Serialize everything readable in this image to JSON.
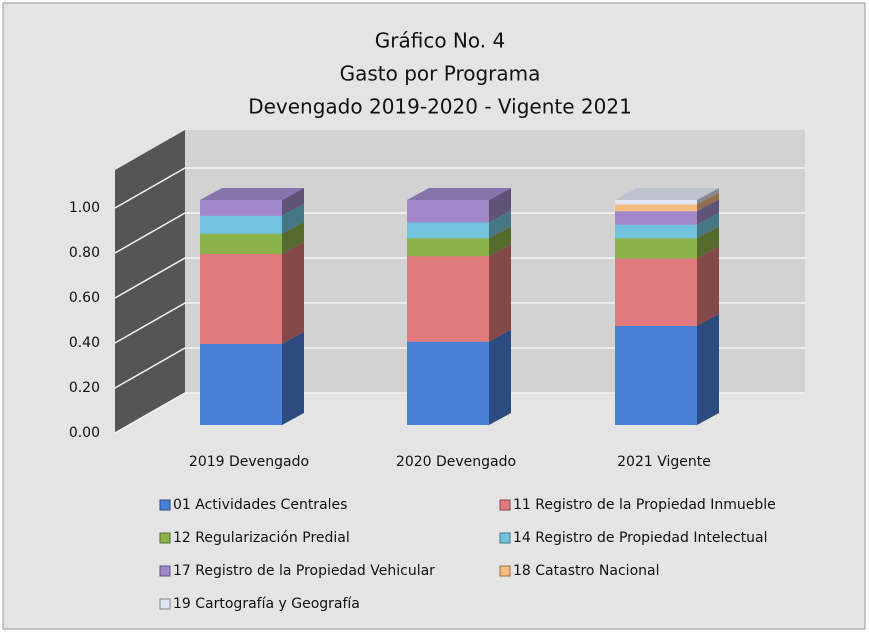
{
  "chart_data": {
    "type": "bar3d_stacked",
    "title": [
      "Gráfico No. 4",
      "Gasto por Programa",
      "Devengado 2019-2020 - Vigente 2021"
    ],
    "categories": [
      "2019 Devengado",
      "2020 Devengado",
      "2021 Vigente"
    ],
    "ylim": [
      0,
      1
    ],
    "yticks": [
      {
        "value": 0,
        "label": "0.00"
      },
      {
        "value": 0.2,
        "label": "0.20"
      },
      {
        "value": 0.4,
        "label": "0.40"
      },
      {
        "value": 0.6,
        "label": "0.60"
      },
      {
        "value": 0.8,
        "label": "0.80"
      },
      {
        "value": 1,
        "label": "1.00"
      }
    ],
    "grid": true,
    "series": [
      {
        "name": "01 Actividades Centrales",
        "color": "#4a7fd6",
        "values": [
          0.36,
          0.37,
          0.44
        ]
      },
      {
        "name": "11 Registro de la Propiedad Inmueble",
        "color": "#e07a7c",
        "values": [
          0.4,
          0.38,
          0.3
        ]
      },
      {
        "name": "12 Regularización Predial",
        "color": "#8cb24c",
        "values": [
          0.09,
          0.08,
          0.09
        ]
      },
      {
        "name": "14 Registro de Propiedad Intelectual",
        "color": "#72c4de",
        "values": [
          0.08,
          0.07,
          0.06
        ]
      },
      {
        "name": "17 Registro de la Propiedad Vehicular",
        "color": "#a088ca",
        "values": [
          0.07,
          0.1,
          0.06
        ]
      },
      {
        "name": "18 Catastro Nacional",
        "color": "#f5bb80",
        "values": [
          0,
          0,
          0.03
        ]
      },
      {
        "name": "19 Cartografía y Geografía",
        "color": "#dde5f2",
        "values": [
          0,
          0,
          0.02
        ]
      }
    ]
  }
}
